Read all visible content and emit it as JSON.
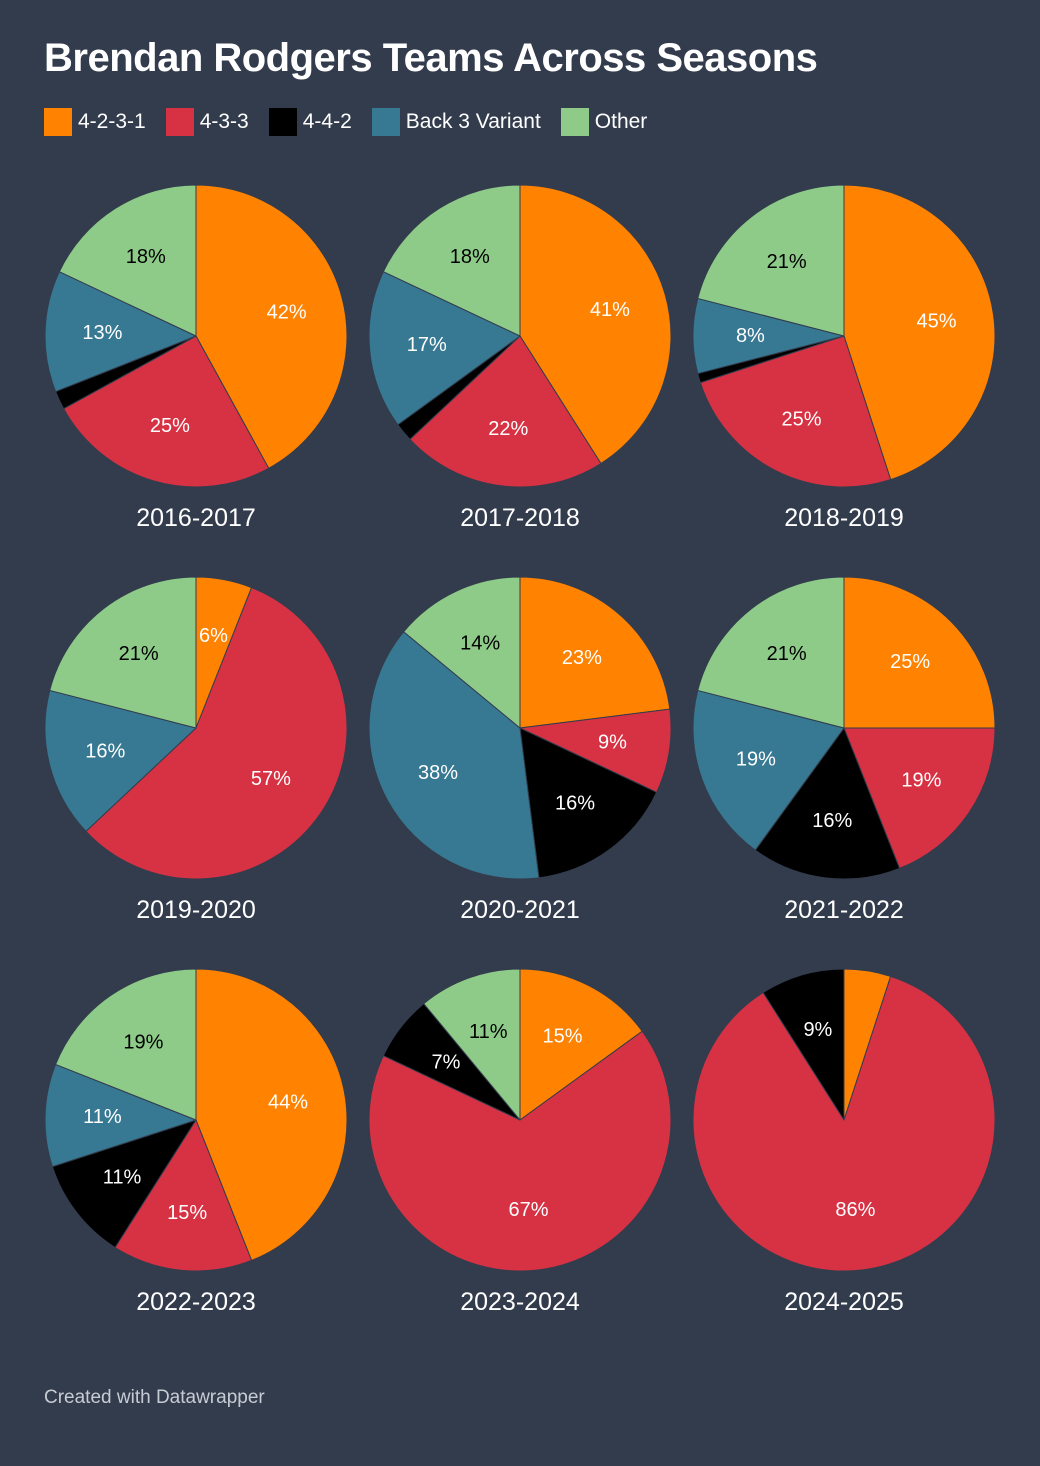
{
  "title": "Brendan Rodgers Teams Across Seasons",
  "footer": "Created with Datawrapper",
  "legend": [
    {
      "label": "4-2-3-1",
      "color": "#ff8200"
    },
    {
      "label": "4-3-3",
      "color": "#d73244"
    },
    {
      "label": "4-4-2",
      "color": "#000000"
    },
    {
      "label": "Back 3 Variant",
      "color": "#377892"
    },
    {
      "label": "Other",
      "color": "#8ecb89"
    }
  ],
  "chart_data": {
    "type": "pie",
    "title": "Brendan Rodgers Teams Across Seasons",
    "series_names": [
      "4-2-3-1",
      "4-3-3",
      "4-4-2",
      "Back 3 Variant",
      "Other"
    ],
    "colors": [
      "#ff8200",
      "#d73244",
      "#000000",
      "#377892",
      "#8ecb89"
    ],
    "label_colors": [
      "#ffffff",
      "#ffffff",
      "#ffffff",
      "#ffffff",
      "#000000"
    ],
    "charts": [
      {
        "season": "2016-2017",
        "values": [
          42,
          25,
          2,
          13,
          18
        ],
        "labels": [
          "42%",
          "25%",
          "",
          "13%",
          "18%"
        ]
      },
      {
        "season": "2017-2018",
        "values": [
          41,
          22,
          2,
          17,
          18
        ],
        "labels": [
          "41%",
          "22%",
          "",
          "17%",
          "18%"
        ]
      },
      {
        "season": "2018-2019",
        "values": [
          45,
          25,
          1,
          8,
          21
        ],
        "labels": [
          "45%",
          "25%",
          "",
          "8%",
          "21%"
        ]
      },
      {
        "season": "2019-2020",
        "values": [
          6,
          57,
          0,
          16,
          21
        ],
        "labels": [
          "6%",
          "57%",
          "",
          "16%",
          "21%"
        ]
      },
      {
        "season": "2020-2021",
        "values": [
          23,
          9,
          16,
          38,
          14
        ],
        "labels": [
          "23%",
          "9%",
          "16%",
          "38%",
          "14%"
        ]
      },
      {
        "season": "2021-2022",
        "values": [
          25,
          19,
          16,
          19,
          21
        ],
        "labels": [
          "25%",
          "19%",
          "16%",
          "19%",
          "21%"
        ]
      },
      {
        "season": "2022-2023",
        "values": [
          44,
          15,
          11,
          11,
          19
        ],
        "labels": [
          "44%",
          "15%",
          "11%",
          "11%",
          "19%"
        ]
      },
      {
        "season": "2023-2024",
        "values": [
          15,
          67,
          7,
          0,
          11
        ],
        "labels": [
          "15%",
          "67%",
          "7%",
          "",
          "11%"
        ]
      },
      {
        "season": "2024-2025",
        "values": [
          5,
          86,
          9,
          0,
          0
        ],
        "labels": [
          "",
          "86%",
          "9%",
          "",
          ""
        ]
      }
    ]
  }
}
